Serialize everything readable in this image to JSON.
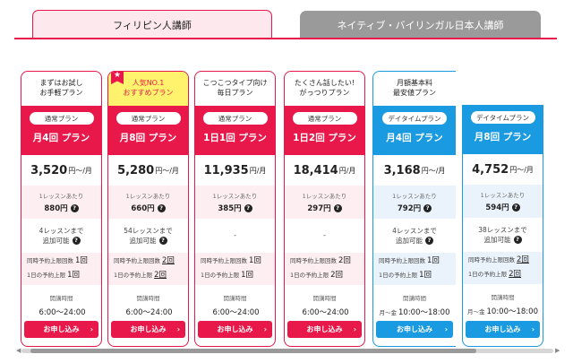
{
  "tabs": {
    "active": "フィリピン人講師",
    "inactive": "ネイティブ・バイリンガル日本人講師"
  },
  "plans": [
    {
      "title1": "まずはお試し",
      "title2": "お手軽プラン",
      "type": "通常プラン",
      "plan": "月4回 プラン",
      "price": "3,520",
      "unit": "円〜/月",
      "per_label": "1レッスンあたり",
      "per_value": "880円",
      "extra1": "4レッスンまで",
      "extra2": "追加可能",
      "limit1_label": "同時予約上限回数",
      "limit1_value": "1回",
      "limit2_label": "1日の予約上限",
      "limit2_value": "1回",
      "time_label": "開講時間",
      "time_prefix": "",
      "time_value": "6:00〜24:00",
      "apply": "お申し込み",
      "accent": "#e8194a"
    },
    {
      "badge": "★",
      "title1": "人気NO.1",
      "title2": "おすすめプラン",
      "type": "通常プラン",
      "plan": "月8回 プラン",
      "price": "5,280",
      "unit": "円〜/月",
      "per_label": "1レッスンあたり",
      "per_value": "660円",
      "extra1": "54レッスンまで",
      "extra2": "追加可能",
      "limit1_label": "同時予約上限回数",
      "limit1_value": "2回",
      "limit2_label": "1日の予約上限",
      "limit2_value": "2回",
      "time_label": "開講時間",
      "time_prefix": "",
      "time_value": "6:00〜24:00",
      "apply": "お申し込み",
      "accent": "#e8194a"
    },
    {
      "title1": "こつこつタイプ向け",
      "title2": "毎日プラン",
      "type": "通常プラン",
      "plan": "1日1回 プラン",
      "price": "11,935",
      "unit": "円/月",
      "per_label": "1レッスンあたり",
      "per_value": "385円",
      "extra1": "-",
      "extra2": "",
      "limit1_label": "同時予約上限回数",
      "limit1_value": "1回",
      "limit2_label": "1日の予約上限",
      "limit2_value": "1回",
      "time_label": "開講時間",
      "time_prefix": "",
      "time_value": "6:00〜24:00",
      "apply": "お申し込み",
      "accent": "#e8194a"
    },
    {
      "title1": "たくさん話したい!",
      "title2": "がっつりプラン",
      "type": "通常プラン",
      "plan": "1日2回 プラン",
      "price": "18,414",
      "unit": "円/月",
      "per_label": "1レッスンあたり",
      "per_value": "297円",
      "extra1": "-",
      "extra2": "",
      "limit1_label": "同時予約上限回数",
      "limit1_value": "2回",
      "limit2_label": "1日の予約上限",
      "limit2_value": "2回",
      "time_label": "開講時間",
      "time_prefix": "",
      "time_value": "6:00〜24:00",
      "apply": "お申し込み",
      "accent": "#e8194a"
    },
    {
      "title1": "月額基本料",
      "title2": "最安値プラン",
      "type": "デイタイムプラン",
      "plan": "月4回 プラン",
      "price": "3,168",
      "unit": "円〜/月",
      "per_label": "1レッスンあたり",
      "per_value": "792円",
      "extra1": "4レッスンまで",
      "extra2": "追加可能",
      "limit1_label": "同時予約上限回数",
      "limit1_value": "1回",
      "limit2_label": "1日の予約上限",
      "limit2_value": "1回",
      "time_label": "開講時間",
      "time_prefix": "月〜金",
      "time_value": "10:00〜18:00",
      "apply": "お申し込み",
      "accent": "#1a9ae0"
    },
    {
      "title1": "",
      "title2": "",
      "type": "デイタイムプラン",
      "plan": "月8回 プラン",
      "price": "4,752",
      "unit": "円〜/月",
      "per_label": "1レッスンあたり",
      "per_value": "594円",
      "extra1": "38レッスンまで",
      "extra2": "追加可能",
      "limit1_label": "同時予約上限回数",
      "limit1_value": "2回",
      "limit2_label": "1日の予約上限",
      "limit2_value": "2回",
      "time_label": "開講時間",
      "time_prefix": "月〜金",
      "time_value": "10:00〜18:00",
      "apply": "お申し込み",
      "accent": "#1a9ae0"
    }
  ],
  "help_glyph": "?",
  "arrow_glyph": "›"
}
